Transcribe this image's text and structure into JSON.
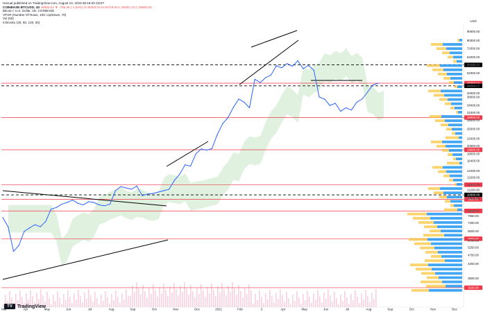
{
  "header": {
    "publisher": "Hexual published on TradingView.com, August 10, 2023 06:19:03 CEST",
    "symbol": "COINBASE:BTCUSD, 1D",
    "ohlc": "45583.62 ▼ -705.46 (-1.53%) O:46283.03 H:46718.63 L:45081.13 C:45583.62",
    "indicators": [
      "Bitcoin / U.S. Dollar, 1D, COINBASE",
      "VPVR (Number Of Rows, 100, Up/Down, 70)",
      "Vol (50)",
      "Ichimoku (20, 60, 120, 30)"
    ]
  },
  "currency": "USD",
  "brand": "TradingView",
  "colors": {
    "price_line": "#2962ff",
    "level_line": "#f23645",
    "ichimoku_cloud": "#a5d6a7",
    "vp_up": "#2196f3",
    "vp_down": "#fbc02d",
    "volume": "#f8bbd0",
    "dashed": "#000000"
  },
  "chart_data": {
    "type": "line",
    "title": "Bitcoin / U.S. Dollar, 1D, COINBASE",
    "log_scale": true,
    "ylim": [
      2400,
      98000
    ],
    "y_ticks": [
      3500,
      4250,
      4750,
      5250,
      5750,
      6500,
      7250,
      7950,
      8500,
      10000,
      11200,
      12000,
      13200,
      14400,
      16400,
      18000,
      20000,
      22000,
      25000,
      28000,
      31000,
      34000,
      38000,
      40000,
      44000,
      52000,
      58000,
      64000,
      72000,
      80000,
      90000
    ],
    "x_labels": [
      "Mar",
      "Apr",
      "May",
      "Jun",
      "Jul",
      "Aug",
      "Sep",
      "Oct",
      "Nov",
      "Dec",
      "2021",
      "Feb",
      "3",
      "Apr",
      "May",
      "Jun",
      "Jul",
      "Aug",
      "Sep",
      "Oct",
      "Nov",
      "Dec"
    ],
    "series": [
      {
        "values": [
          7800,
          6900,
          5000,
          5400,
          6500,
          6800,
          7100,
          6900,
          7400,
          8700,
          8900,
          9300,
          9500,
          9800,
          9400,
          9200,
          9600,
          9500,
          9200,
          9100,
          9300,
          11100,
          11700,
          11500,
          11300,
          11800,
          10400,
          10600,
          10700,
          10900,
          11100,
          11300,
          12700,
          13800,
          15600,
          15300,
          18000,
          19200,
          18900,
          19300,
          23200,
          26800,
          29000,
          33200,
          37000,
          35500,
          33000,
          48000,
          46000,
          49000,
          50700,
          57300,
          55800,
          59000,
          57000,
          61200,
          55200,
          57500,
          54000,
          38000,
          37000,
          34000,
          35000,
          31500,
          33000,
          32000,
          35500,
          37000,
          40500,
          44500,
          45583
        ]
      }
    ],
    "horizontal_levels": [
      {
        "price": 58000,
        "style": "dashed",
        "label": "58000.00"
      },
      {
        "price": 45583.62,
        "style": "solid",
        "label": "45583.62"
      },
      {
        "price": 44000,
        "style": "dashed",
        "label": "44000.00"
      },
      {
        "price": 29000,
        "style": "solid",
        "label": "29000.00"
      },
      {
        "price": 19000,
        "style": "solid",
        "label": "19000.00"
      },
      {
        "price": 12000,
        "style": "solid",
        "label": "12000.00"
      },
      {
        "price": 10500,
        "style": "dashed",
        "label": "10500.00"
      },
      {
        "price": 9900,
        "style": "solid",
        "label": "9900.00"
      },
      {
        "price": 8500,
        "style": "solid",
        "label": "8500.00"
      },
      {
        "price": 5900,
        "style": "solid",
        "label": "5900.00"
      },
      {
        "price": 3100,
        "style": "solid",
        "label": "3100.00"
      }
    ]
  }
}
